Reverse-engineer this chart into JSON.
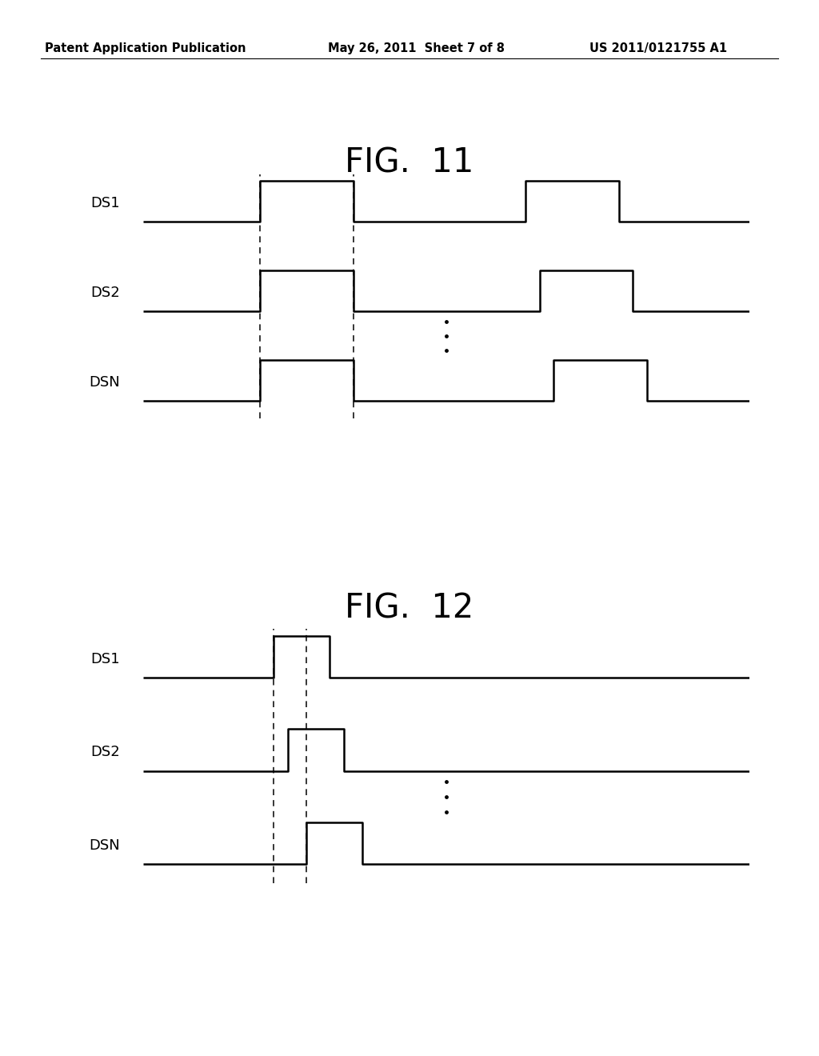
{
  "background_color": "#ffffff",
  "header_left": "Patent Application Publication",
  "header_mid": "May 26, 2011  Sheet 7 of 8",
  "header_right": "US 2011/0121755 A1",
  "fig11_title": "FIG.  11",
  "fig12_title": "FIG.  12",
  "fig11_signals": {
    "DS1": {
      "waveform": [
        0,
        0,
        1,
        1,
        0,
        0,
        0,
        0,
        1,
        1,
        0,
        0
      ],
      "times": [
        0,
        2.5,
        2.5,
        4.5,
        4.5,
        7,
        7,
        8.2,
        8.2,
        10.2,
        10.2,
        13
      ]
    },
    "DS2": {
      "waveform": [
        0,
        0,
        1,
        1,
        0,
        0,
        0,
        0,
        1,
        1,
        0,
        0
      ],
      "times": [
        0,
        2.5,
        2.5,
        4.5,
        4.5,
        7,
        7,
        8.5,
        8.5,
        10.5,
        10.5,
        13
      ]
    },
    "DSN": {
      "waveform": [
        0,
        0,
        1,
        1,
        0,
        0,
        0,
        0,
        1,
        1,
        0,
        0
      ],
      "times": [
        0,
        2.5,
        2.5,
        4.5,
        4.5,
        7,
        7,
        8.8,
        8.8,
        10.8,
        10.8,
        13
      ]
    }
  },
  "fig11_dashes": [
    2.5,
    4.5
  ],
  "fig12_signals": {
    "DS1": {
      "waveform": [
        0,
        0,
        1,
        1,
        0,
        0
      ],
      "times": [
        0,
        2.8,
        2.8,
        4.0,
        4.0,
        13
      ]
    },
    "DS2": {
      "waveform": [
        0,
        0,
        1,
        1,
        0,
        0
      ],
      "times": [
        0,
        3.1,
        3.1,
        4.3,
        4.3,
        13
      ]
    },
    "DSN": {
      "waveform": [
        0,
        0,
        1,
        1,
        0,
        0
      ],
      "times": [
        0,
        3.5,
        3.5,
        4.7,
        4.7,
        13
      ]
    }
  },
  "fig12_dashes": [
    2.8,
    3.5
  ],
  "signal_color": "#000000",
  "dash_color": "#000000",
  "label_fontsize": 13,
  "title_fontsize": 30,
  "header_fontsize": 10.5
}
